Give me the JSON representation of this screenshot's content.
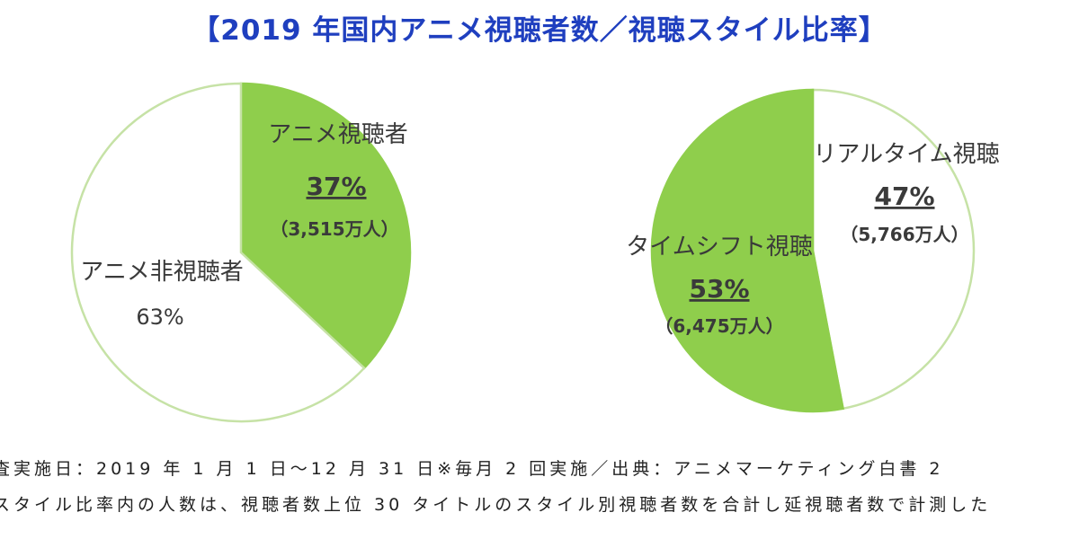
{
  "title": "【2019 年国内アニメ視聴者数／視聴スタイル比率】",
  "colors": {
    "accent": "#8fce4c",
    "outline": "#c6e2a6",
    "title": "#1f3fbf",
    "blank": "#ffffff"
  },
  "chart_data": [
    {
      "type": "pie",
      "title": "",
      "slices": [
        {
          "label": "アニメ視聴者",
          "percent_text": "37%",
          "count_text": "（3,515万人）",
          "value": 37,
          "color": "#8fce4c"
        },
        {
          "label": "アニメ非視聴者",
          "percent_text": "63%",
          "count_text": "",
          "value": 63,
          "color": "#ffffff"
        }
      ]
    },
    {
      "type": "pie",
      "title": "",
      "slices": [
        {
          "label": "リアルタイム視聴",
          "percent_text": "47%",
          "count_text": "（5,766万人）",
          "value": 47,
          "color": "#ffffff"
        },
        {
          "label": "タイムシフト視聴",
          "percent_text": "53%",
          "count_text": "（6,475万人）",
          "value": 53,
          "color": "#8fce4c"
        }
      ]
    }
  ],
  "footnotes": [
    "査実施日：2019 年 1 月 1 日〜12 月 31 日※毎月 2 回実施／出典：アニメマーケティング白書 2",
    "スタイル比率内の人数は、視聴者数上位 30 タイトルのスタイル別視聴者数を合計し延視聴者数で計測した"
  ]
}
